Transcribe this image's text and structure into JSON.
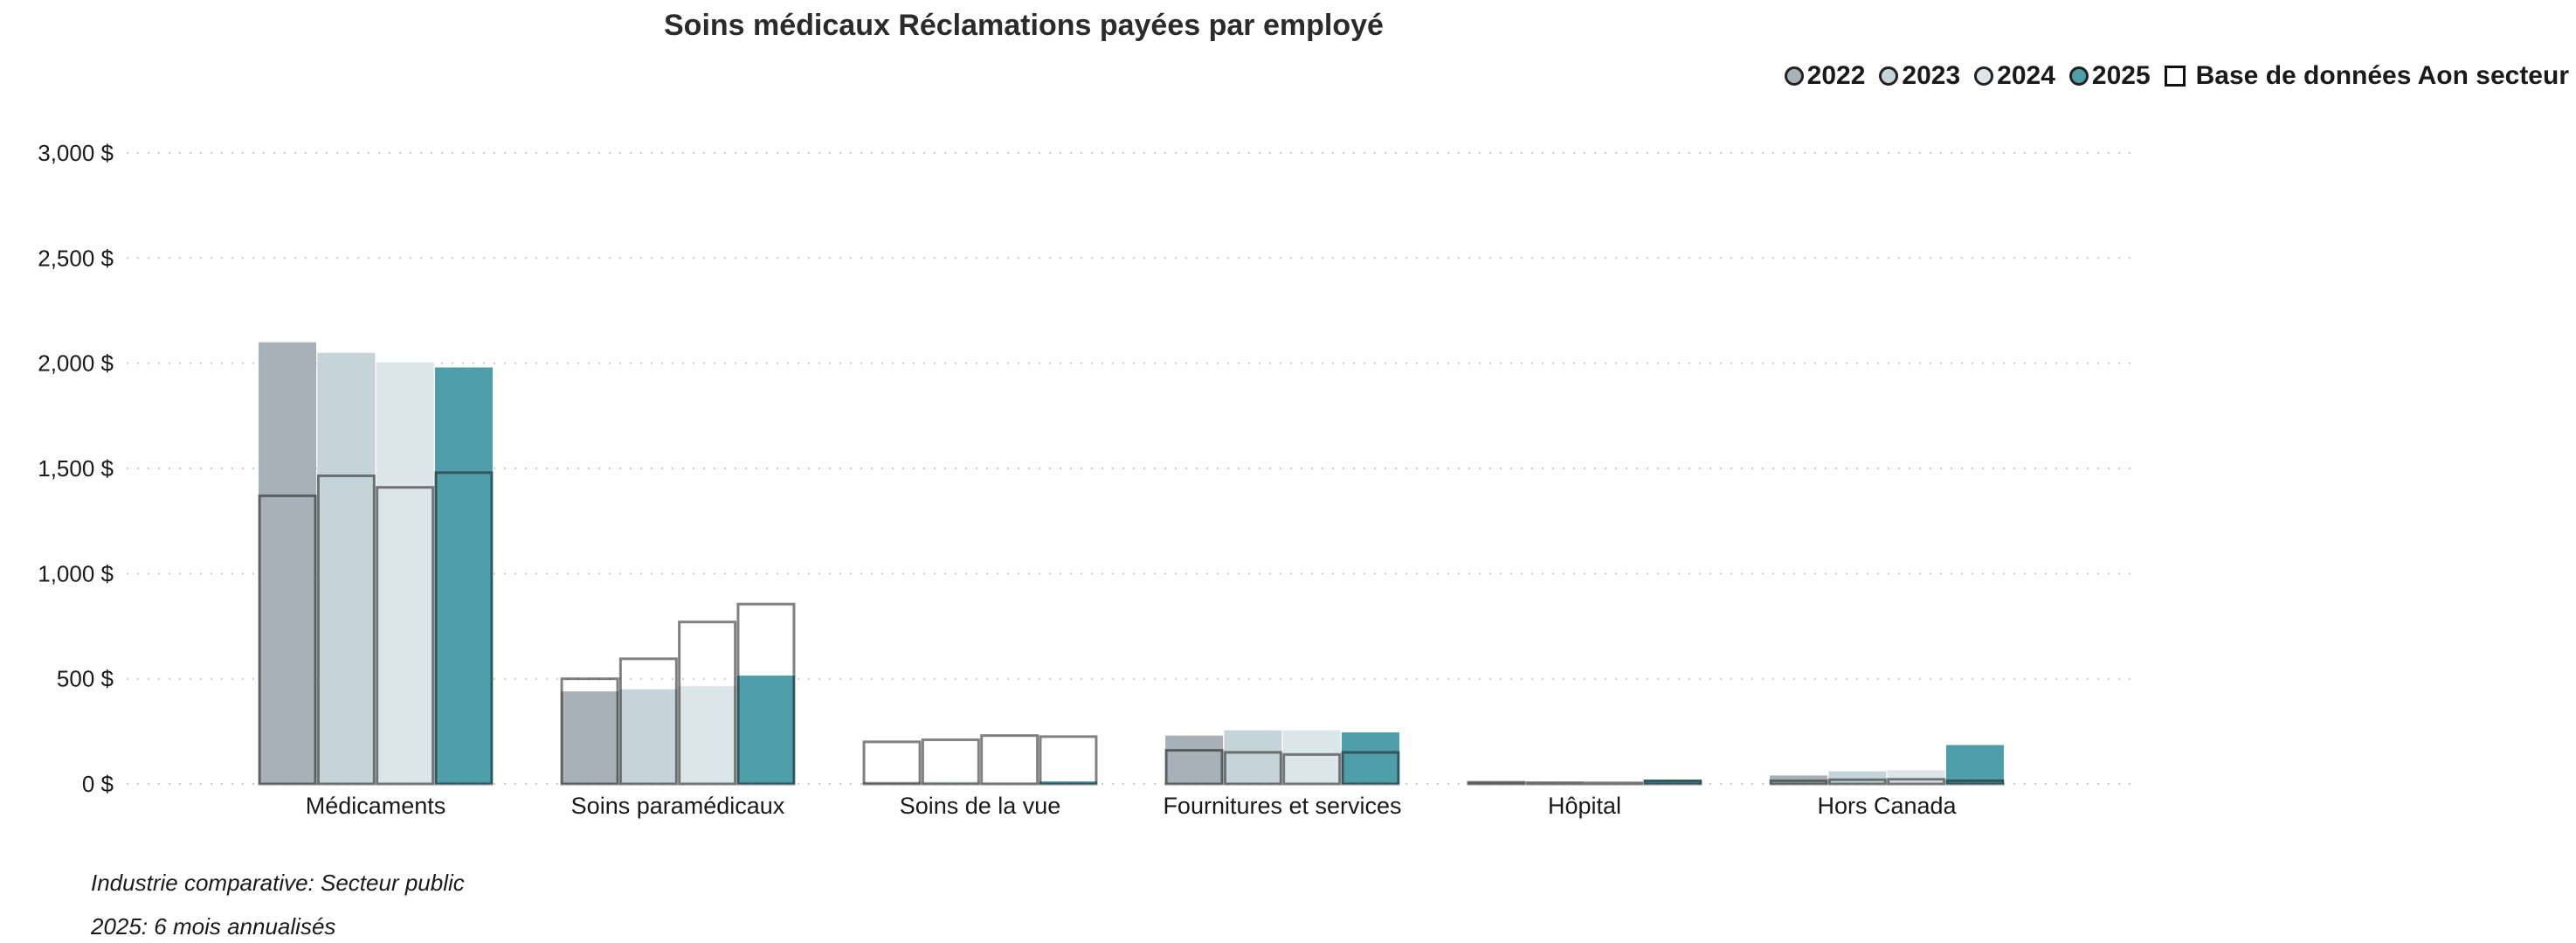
{
  "chart_data": {
    "type": "bar",
    "title": "Soins médicaux Réclamations payées par employé",
    "categories": [
      "Médicaments",
      "Soins paramédicaux",
      "Soins de la vue",
      "Fournitures et services",
      "Hôpital",
      "Hors Canada"
    ],
    "series": [
      {
        "name": "2022",
        "color": "#a7b1b7",
        "values": [
          2100,
          440,
          10,
          230,
          10,
          40
        ]
      },
      {
        "name": "2023",
        "color": "#c5d4d8",
        "values": [
          2050,
          450,
          10,
          255,
          8,
          60
        ]
      },
      {
        "name": "2024",
        "color": "#dce5e7",
        "values": [
          2005,
          465,
          8,
          255,
          6,
          65
        ]
      },
      {
        "name": "2025",
        "color": "#4d9ea8",
        "values": [
          1980,
          515,
          12,
          245,
          20,
          185
        ]
      }
    ],
    "benchmark": {
      "name": "Base de données Aon secteur",
      "values": [
        [
          1370,
          500,
          200,
          160,
          8,
          15
        ],
        [
          1465,
          595,
          210,
          150,
          6,
          20
        ],
        [
          1410,
          770,
          230,
          140,
          5,
          22
        ],
        [
          1480,
          855,
          225,
          150,
          15,
          15
        ]
      ]
    },
    "ylim": [
      0,
      3000
    ],
    "yticks": [
      0,
      500,
      1000,
      1500,
      2000,
      2500,
      3000
    ],
    "ytick_labels": [
      "0 $",
      "500 $",
      "1,000 $",
      "1,500 $",
      "2,000 $",
      "2,500 $",
      "3,000 $"
    ],
    "grid": true,
    "legend_position": "top-right"
  },
  "legend": {
    "items": [
      {
        "label": "2022",
        "color": "#a7b1b7"
      },
      {
        "label": "2023",
        "color": "#c5d4d8"
      },
      {
        "label": "2024",
        "color": "#dce5e7"
      },
      {
        "label": "2025",
        "color": "#4d9ea8"
      }
    ],
    "benchmark_label": "Base de données Aon secteur"
  },
  "notes": {
    "line1": "Industrie comparative: Secteur public",
    "line2": "2025: 6 mois annualisés"
  }
}
